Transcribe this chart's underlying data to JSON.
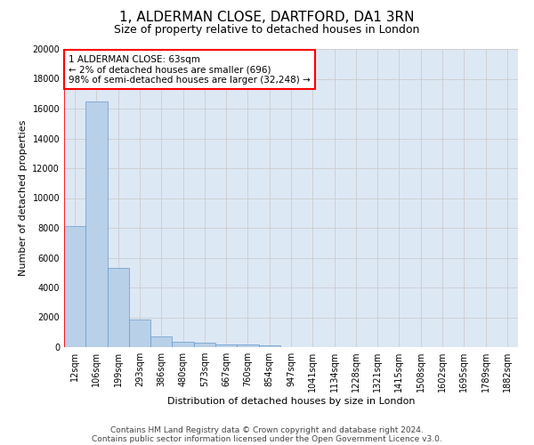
{
  "title": "1, ALDERMAN CLOSE, DARTFORD, DA1 3RN",
  "subtitle": "Size of property relative to detached houses in London",
  "xlabel": "Distribution of detached houses by size in London",
  "ylabel": "Number of detached properties",
  "footnote1": "Contains HM Land Registry data © Crown copyright and database right 2024.",
  "footnote2": "Contains public sector information licensed under the Open Government Licence v3.0.",
  "bin_labels": [
    "12sqm",
    "106sqm",
    "199sqm",
    "293sqm",
    "386sqm",
    "480sqm",
    "573sqm",
    "667sqm",
    "760sqm",
    "854sqm",
    "947sqm",
    "1041sqm",
    "1134sqm",
    "1228sqm",
    "1321sqm",
    "1415sqm",
    "1508sqm",
    "1602sqm",
    "1695sqm",
    "1789sqm",
    "1882sqm"
  ],
  "bar_values": [
    8100,
    16500,
    5300,
    1850,
    700,
    350,
    270,
    200,
    160,
    100,
    0,
    0,
    0,
    0,
    0,
    0,
    0,
    0,
    0,
    0,
    0
  ],
  "bar_color": "#b8d0e8",
  "bar_edge_color": "#6699cc",
  "grid_color": "#cccccc",
  "bg_color": "#dde8f5",
  "vline_x": 0.5,
  "vline_color": "red",
  "annotation_text": "1 ALDERMAN CLOSE: 63sqm\n← 2% of detached houses are smaller (696)\n98% of semi-detached houses are larger (32,248) →",
  "annotation_box_color": "white",
  "annotation_box_edge": "red",
  "ylim": [
    0,
    20000
  ],
  "yticks": [
    0,
    2000,
    4000,
    6000,
    8000,
    10000,
    12000,
    14000,
    16000,
    18000,
    20000
  ],
  "title_fontsize": 11,
  "subtitle_fontsize": 9,
  "ylabel_fontsize": 8,
  "xlabel_fontsize": 8,
  "tick_fontsize": 7,
  "footnote_fontsize": 6.5,
  "annot_fontsize": 7.5
}
